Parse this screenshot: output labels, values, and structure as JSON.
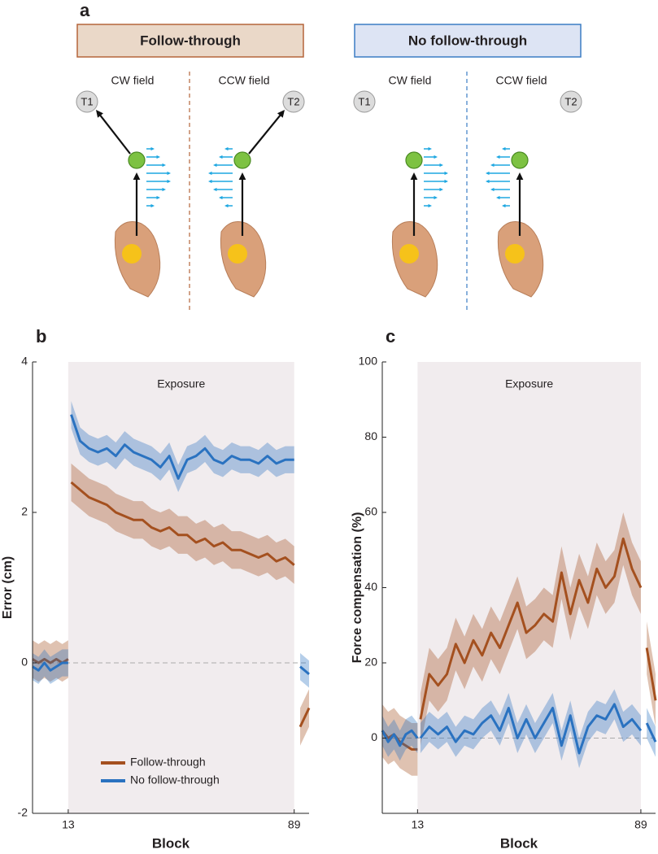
{
  "diagram": {
    "label": "a",
    "panels": [
      {
        "title": "Follow-through",
        "fields": [
          "CW field",
          "CCW field"
        ],
        "targets": [
          "T1",
          "T2"
        ]
      },
      {
        "title": "No follow-through",
        "fields": [
          "CW field",
          "CCW field"
        ],
        "targets": [
          "T1",
          "T2"
        ]
      }
    ]
  },
  "chart_data": [
    {
      "type": "line",
      "panel_label": "b",
      "ylabel": "Error (cm)",
      "xlabel": "Block",
      "exposure": {
        "label": "Exposure",
        "range": [
          13,
          89
        ]
      },
      "xlim": [
        1,
        94
      ],
      "xticks": [
        13,
        89
      ],
      "ylim": [
        -2,
        4
      ],
      "yticks": [
        -2,
        0,
        2,
        4
      ],
      "ref_line": 0,
      "legend": "lower center",
      "x": [
        1,
        3,
        5,
        7,
        9,
        11,
        13,
        13.5,
        14,
        17,
        20,
        23,
        26,
        29,
        32,
        35,
        38,
        41,
        44,
        47,
        50,
        53,
        56,
        59,
        62,
        65,
        68,
        71,
        74,
        77,
        80,
        83,
        86,
        89,
        90,
        91,
        94
      ],
      "series": [
        {
          "name": "Follow-through",
          "color": "#a4501f",
          "error": 0.25,
          "values": [
            0.05,
            0.0,
            0.05,
            0.0,
            0.05,
            0.0,
            0.05,
            null,
            2.4,
            2.3,
            2.2,
            2.15,
            2.1,
            2.0,
            1.95,
            1.9,
            1.9,
            1.8,
            1.75,
            1.8,
            1.7,
            1.7,
            1.6,
            1.65,
            1.55,
            1.6,
            1.5,
            1.5,
            1.45,
            1.4,
            1.45,
            1.35,
            1.4,
            1.3,
            null,
            -0.85,
            -0.6
          ]
        },
        {
          "name": "No follow-through",
          "color": "#2a72c0",
          "error": 0.18,
          "values": [
            -0.05,
            -0.1,
            0.0,
            -0.1,
            -0.05,
            0.0,
            0.0,
            null,
            3.3,
            2.95,
            2.85,
            2.8,
            2.85,
            2.75,
            2.9,
            2.8,
            2.75,
            2.7,
            2.6,
            2.75,
            2.45,
            2.7,
            2.75,
            2.85,
            2.7,
            2.65,
            2.75,
            2.7,
            2.7,
            2.65,
            2.75,
            2.65,
            2.7,
            2.7,
            null,
            -0.05,
            -0.15
          ]
        }
      ]
    },
    {
      "type": "line",
      "panel_label": "c",
      "ylabel": "Force compensation (%)",
      "xlabel": "Block",
      "exposure": {
        "label": "Exposure",
        "range": [
          13,
          89
        ]
      },
      "xlim": [
        1,
        94
      ],
      "xticks": [
        13,
        89
      ],
      "ylim": [
        -20,
        100
      ],
      "yticks": [
        0,
        20,
        40,
        60,
        80,
        100
      ],
      "ref_line": 0,
      "x": [
        1,
        3,
        5,
        7,
        9,
        11,
        13,
        13.5,
        14,
        17,
        20,
        23,
        26,
        29,
        32,
        35,
        38,
        41,
        44,
        47,
        50,
        53,
        56,
        59,
        62,
        65,
        68,
        71,
        74,
        77,
        80,
        83,
        86,
        89,
        90,
        91,
        94
      ],
      "series": [
        {
          "name": "Follow-through",
          "color": "#a4501f",
          "error": 7,
          "values": [
            2,
            0,
            1,
            -1,
            -2,
            -3,
            -3,
            null,
            5,
            17,
            14,
            17,
            25,
            20,
            26,
            22,
            28,
            24,
            30,
            36,
            28,
            30,
            33,
            31,
            44,
            33,
            42,
            36,
            45,
            40,
            43,
            53,
            45,
            40,
            null,
            24,
            10
          ]
        },
        {
          "name": "No follow-through",
          "color": "#2a72c0",
          "error": 4,
          "values": [
            2,
            -1,
            1,
            -2,
            1,
            2,
            0,
            null,
            0,
            3,
            1,
            3,
            -1,
            2,
            1,
            4,
            6,
            2,
            8,
            0,
            5,
            0,
            4,
            8,
            -2,
            6,
            -4,
            3,
            6,
            5,
            9,
            3,
            5,
            2,
            null,
            4,
            -1
          ]
        }
      ]
    }
  ]
}
